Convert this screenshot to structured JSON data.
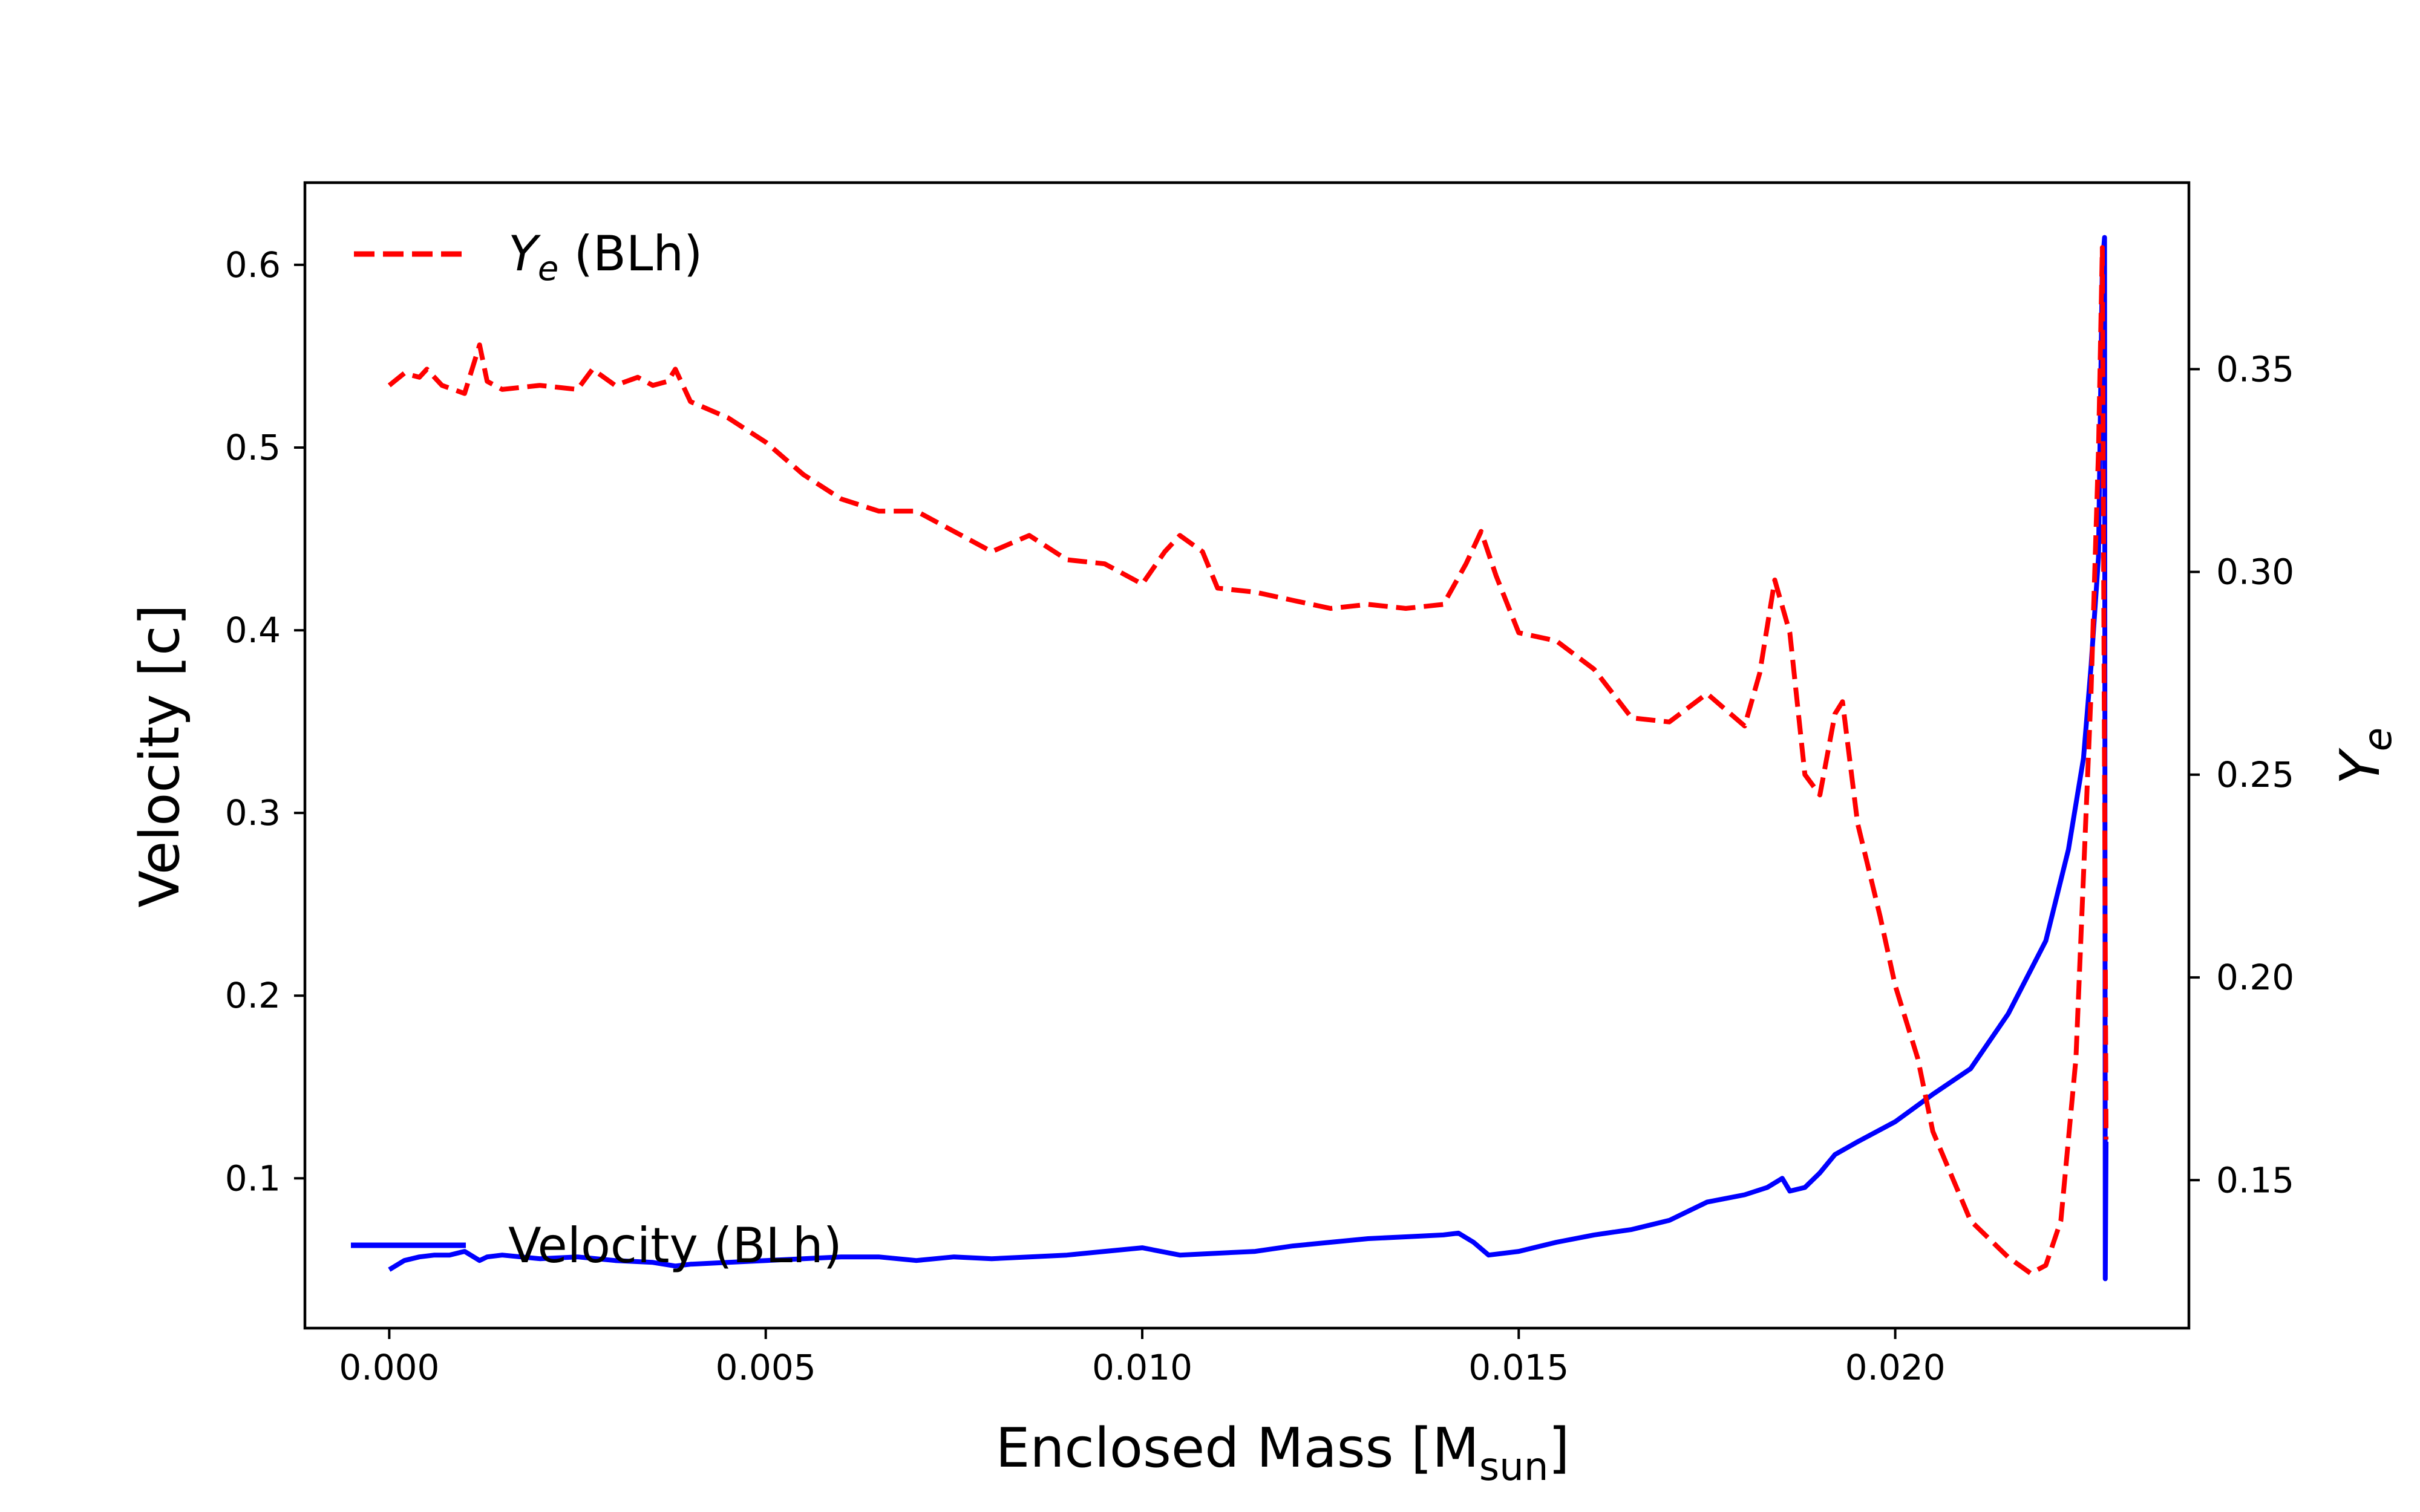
{
  "chart_data": {
    "type": "line",
    "xlabel": "Enclosed Mass [M",
    "xlabel_sub": "sun",
    "xlabel_end": "]",
    "ylabel": "Velocity [c]",
    "y2label_main": "Y",
    "y2label_sub": "e",
    "xlim": [
      -0.00112,
      0.0239
    ],
    "ylim": [
      0.018,
      0.645
    ],
    "y2lim": [
      0.1135,
      0.396
    ],
    "x_ticks": [
      "0.000",
      "0.005",
      "0.010",
      "0.015",
      "0.020"
    ],
    "x_tick_values": [
      0,
      0.005,
      0.01,
      0.015,
      0.02
    ],
    "y_ticks": [
      "0.1",
      "0.2",
      "0.3",
      "0.4",
      "0.5",
      "0.6"
    ],
    "y_tick_values": [
      0.1,
      0.2,
      0.3,
      0.4,
      0.5,
      0.6
    ],
    "y2_ticks": [
      "0.15",
      "0.20",
      "0.25",
      "0.30",
      "0.35"
    ],
    "y2_tick_values": [
      0.15,
      0.2,
      0.25,
      0.3,
      0.35
    ],
    "grid": false,
    "legend": [
      {
        "main": "Y",
        "sub": "e",
        "rest": " (BLh)",
        "placement": "top-left"
      },
      {
        "label": "Velocity (BLh)",
        "placement": "bottom-left"
      }
    ],
    "series": [
      {
        "name": "Velocity (BLh)",
        "axis": "left",
        "color": "#0000ff",
        "style": "solid",
        "x": [
          0.0,
          0.0002,
          0.0004,
          0.0006,
          0.0008,
          0.001,
          0.0012,
          0.0013,
          0.0015,
          0.002,
          0.0025,
          0.003,
          0.0035,
          0.0038,
          0.004,
          0.0045,
          0.005,
          0.0055,
          0.006,
          0.0065,
          0.007,
          0.0075,
          0.008,
          0.0085,
          0.009,
          0.0095,
          0.01,
          0.0105,
          0.011,
          0.0115,
          0.012,
          0.0125,
          0.013,
          0.0135,
          0.014,
          0.0142,
          0.0144,
          0.0146,
          0.015,
          0.0155,
          0.016,
          0.0165,
          0.017,
          0.0175,
          0.018,
          0.0183,
          0.0185,
          0.0186,
          0.0188,
          0.019,
          0.0192,
          0.0195,
          0.02,
          0.0205,
          0.021,
          0.0215,
          0.022,
          0.0223,
          0.0225,
          0.0226,
          0.0227,
          0.02275,
          0.02278,
          0.02279,
          0.0228
        ],
        "y": [
          0.05,
          0.055,
          0.057,
          0.058,
          0.058,
          0.06,
          0.055,
          0.057,
          0.058,
          0.056,
          0.057,
          0.055,
          0.054,
          0.052,
          0.053,
          0.054,
          0.055,
          0.056,
          0.057,
          0.057,
          0.055,
          0.057,
          0.056,
          0.057,
          0.058,
          0.06,
          0.062,
          0.058,
          0.059,
          0.06,
          0.063,
          0.065,
          0.067,
          0.068,
          0.069,
          0.07,
          0.065,
          0.058,
          0.06,
          0.065,
          0.069,
          0.072,
          0.077,
          0.087,
          0.091,
          0.095,
          0.1,
          0.093,
          0.095,
          0.103,
          0.113,
          0.12,
          0.131,
          0.146,
          0.16,
          0.19,
          0.23,
          0.28,
          0.33,
          0.38,
          0.44,
          0.6,
          0.615,
          0.045,
          0.12
        ]
      },
      {
        "name": "Y_e (BLh)",
        "axis": "right",
        "color": "#ff0000",
        "style": "dashed",
        "x": [
          0.0,
          0.0002,
          0.0004,
          0.0005,
          0.0007,
          0.001,
          0.0012,
          0.0013,
          0.0015,
          0.002,
          0.0025,
          0.0027,
          0.003,
          0.0033,
          0.0035,
          0.0037,
          0.0038,
          0.004,
          0.0045,
          0.005,
          0.0055,
          0.006,
          0.0065,
          0.007,
          0.0075,
          0.008,
          0.0085,
          0.009,
          0.0095,
          0.01,
          0.0103,
          0.0105,
          0.0108,
          0.011,
          0.0115,
          0.012,
          0.0125,
          0.013,
          0.0135,
          0.014,
          0.0143,
          0.0145,
          0.0147,
          0.015,
          0.0155,
          0.016,
          0.0165,
          0.017,
          0.0175,
          0.018,
          0.0182,
          0.0184,
          0.0186,
          0.0188,
          0.019,
          0.0192,
          0.0193,
          0.0195,
          0.0198,
          0.02,
          0.0203,
          0.0205,
          0.021,
          0.0215,
          0.0218,
          0.022,
          0.0222,
          0.0224,
          0.0226,
          0.0227,
          0.02275,
          0.0228
        ],
        "y": [
          0.346,
          0.349,
          0.348,
          0.35,
          0.346,
          0.344,
          0.356,
          0.347,
          0.345,
          0.346,
          0.345,
          0.35,
          0.346,
          0.348,
          0.346,
          0.347,
          0.35,
          0.342,
          0.338,
          0.332,
          0.324,
          0.318,
          0.315,
          0.315,
          0.31,
          0.305,
          0.309,
          0.303,
          0.302,
          0.297,
          0.305,
          0.309,
          0.305,
          0.296,
          0.295,
          0.293,
          0.291,
          0.292,
          0.291,
          0.292,
          0.302,
          0.31,
          0.299,
          0.285,
          0.283,
          0.276,
          0.264,
          0.263,
          0.27,
          0.262,
          0.275,
          0.298,
          0.285,
          0.25,
          0.245,
          0.265,
          0.268,
          0.238,
          0.215,
          0.198,
          0.18,
          0.162,
          0.14,
          0.131,
          0.127,
          0.129,
          0.14,
          0.18,
          0.27,
          0.33,
          0.38,
          0.16
        ]
      }
    ]
  }
}
